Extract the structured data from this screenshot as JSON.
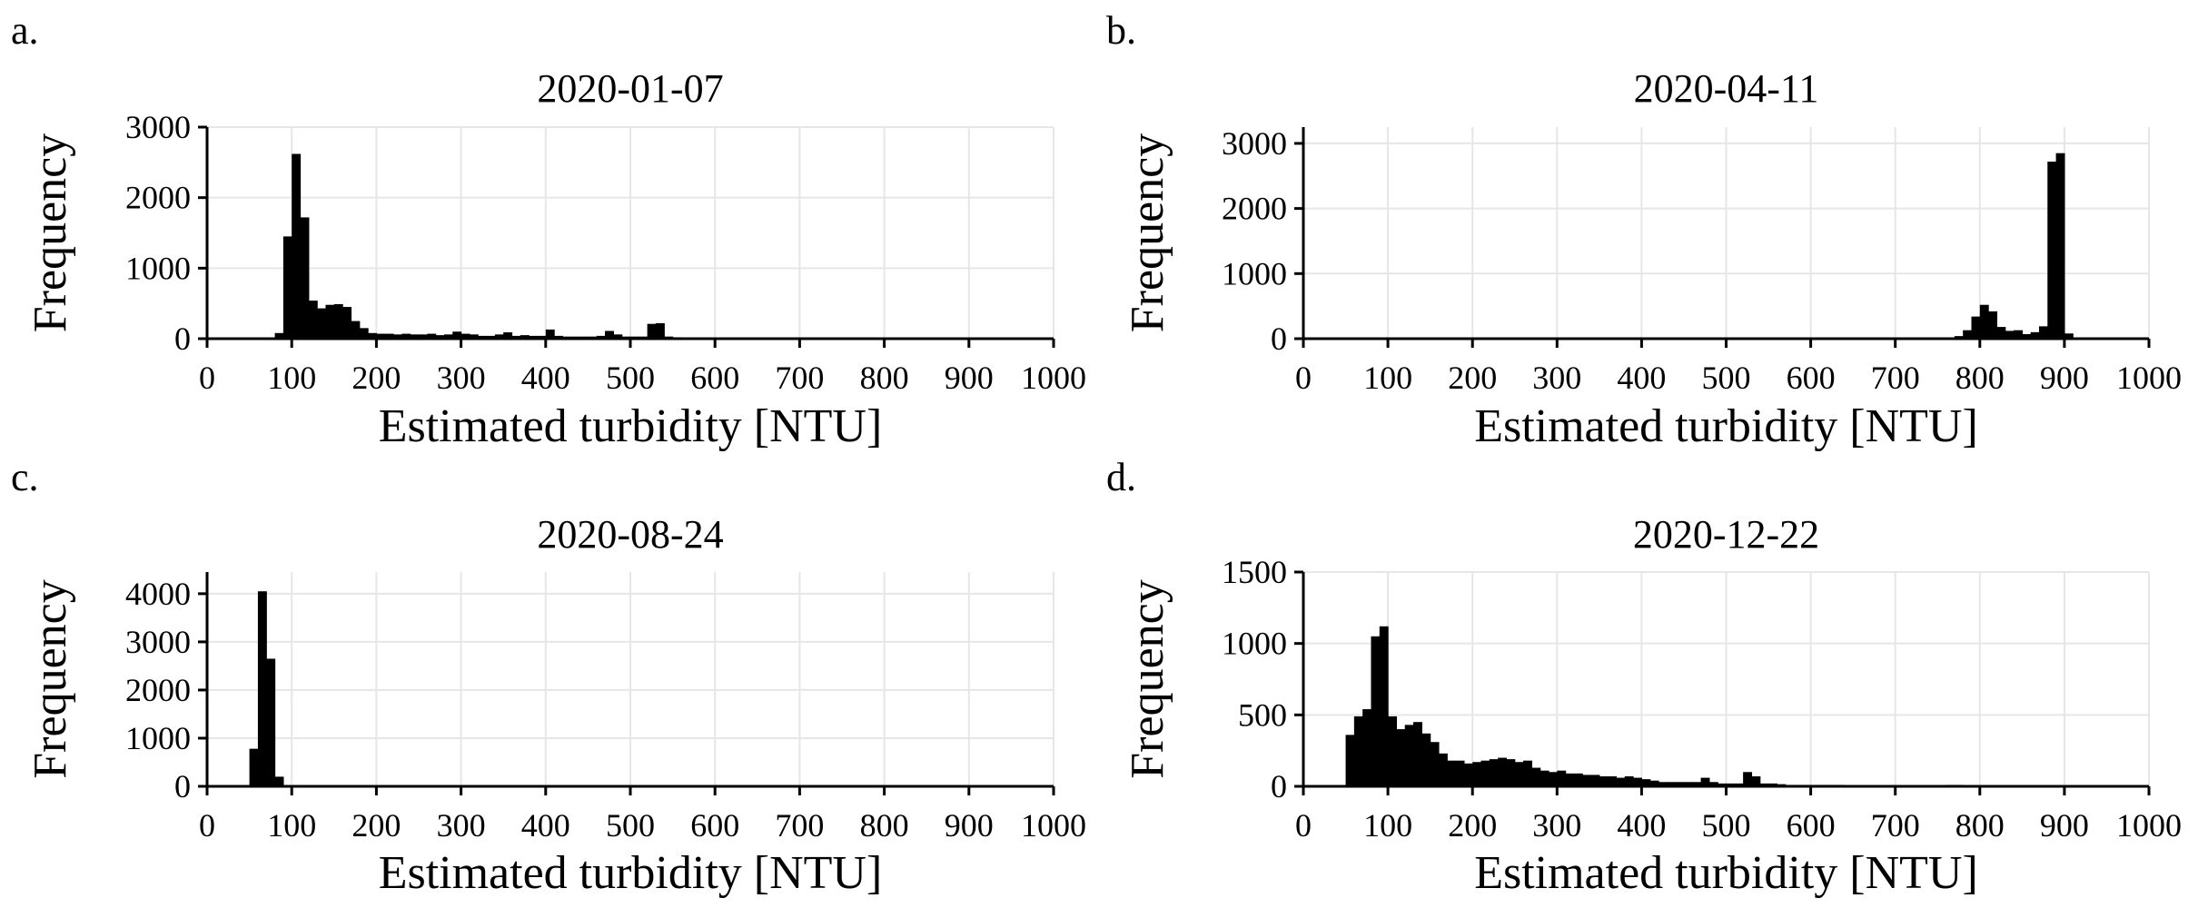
{
  "chart_data": [
    {
      "panel": "a.",
      "type": "bar",
      "title": "2020-01-07",
      "xlabel": "Estimated turbidity [NTU]",
      "ylabel": "Frequency",
      "xlim": [
        0,
        1000
      ],
      "ylim": [
        0,
        3000
      ],
      "xticks": [
        0,
        100,
        200,
        300,
        400,
        500,
        600,
        700,
        800,
        900,
        1000
      ],
      "yticks": [
        0,
        1000,
        2000,
        3000
      ],
      "grid": true,
      "bin_width": 10,
      "bins": [
        [
          80,
          90,
          80
        ],
        [
          90,
          100,
          1450
        ],
        [
          100,
          110,
          2620
        ],
        [
          110,
          120,
          1720
        ],
        [
          120,
          130,
          540
        ],
        [
          130,
          140,
          430
        ],
        [
          140,
          150,
          480
        ],
        [
          150,
          160,
          490
        ],
        [
          160,
          170,
          450
        ],
        [
          170,
          180,
          250
        ],
        [
          180,
          190,
          150
        ],
        [
          190,
          200,
          80
        ],
        [
          200,
          210,
          70
        ],
        [
          210,
          220,
          70
        ],
        [
          220,
          230,
          60
        ],
        [
          230,
          240,
          70
        ],
        [
          240,
          250,
          60
        ],
        [
          250,
          260,
          60
        ],
        [
          260,
          270,
          70
        ],
        [
          270,
          280,
          50
        ],
        [
          280,
          290,
          60
        ],
        [
          290,
          300,
          100
        ],
        [
          300,
          310,
          70
        ],
        [
          310,
          320,
          60
        ],
        [
          320,
          330,
          40
        ],
        [
          330,
          340,
          40
        ],
        [
          340,
          350,
          60
        ],
        [
          350,
          360,
          90
        ],
        [
          360,
          370,
          40
        ],
        [
          370,
          380,
          50
        ],
        [
          380,
          390,
          40
        ],
        [
          390,
          400,
          40
        ],
        [
          400,
          410,
          130
        ],
        [
          410,
          420,
          40
        ],
        [
          420,
          430,
          30
        ],
        [
          430,
          440,
          30
        ],
        [
          440,
          450,
          30
        ],
        [
          450,
          460,
          30
        ],
        [
          460,
          470,
          40
        ],
        [
          470,
          480,
          110
        ],
        [
          480,
          490,
          60
        ],
        [
          490,
          500,
          30
        ],
        [
          500,
          510,
          30
        ],
        [
          510,
          520,
          30
        ],
        [
          520,
          530,
          210
        ],
        [
          530,
          540,
          220
        ],
        [
          540,
          550,
          30
        ],
        [
          550,
          560,
          20
        ],
        [
          560,
          570,
          15
        ],
        [
          570,
          580,
          15
        ],
        [
          580,
          590,
          10
        ],
        [
          590,
          600,
          10
        ]
      ]
    },
    {
      "panel": "b.",
      "type": "bar",
      "title": "2020-04-11",
      "xlabel": "Estimated turbidity [NTU]",
      "ylabel": "Frequency",
      "xlim": [
        0,
        1000
      ],
      "ylim": [
        0,
        3250
      ],
      "xticks": [
        0,
        100,
        200,
        300,
        400,
        500,
        600,
        700,
        800,
        900,
        1000
      ],
      "yticks": [
        0,
        1000,
        2000,
        3000
      ],
      "grid": true,
      "bin_width": 10,
      "bins": [
        [
          600,
          610,
          10
        ],
        [
          610,
          620,
          10
        ],
        [
          620,
          630,
          10
        ],
        [
          630,
          640,
          10
        ],
        [
          640,
          650,
          10
        ],
        [
          650,
          660,
          10
        ],
        [
          660,
          670,
          10
        ],
        [
          670,
          680,
          10
        ],
        [
          680,
          690,
          10
        ],
        [
          690,
          700,
          10
        ],
        [
          700,
          710,
          10
        ],
        [
          710,
          720,
          10
        ],
        [
          720,
          730,
          10
        ],
        [
          730,
          740,
          10
        ],
        [
          740,
          750,
          15
        ],
        [
          750,
          760,
          15
        ],
        [
          760,
          770,
          20
        ],
        [
          770,
          780,
          40
        ],
        [
          780,
          790,
          130
        ],
        [
          790,
          800,
          340
        ],
        [
          800,
          810,
          520
        ],
        [
          810,
          820,
          420
        ],
        [
          820,
          830,
          180
        ],
        [
          830,
          840,
          120
        ],
        [
          840,
          850,
          130
        ],
        [
          850,
          860,
          70
        ],
        [
          860,
          870,
          100
        ],
        [
          870,
          880,
          190
        ],
        [
          880,
          890,
          2720
        ],
        [
          890,
          900,
          2850
        ],
        [
          900,
          910,
          80
        ],
        [
          910,
          920,
          10
        ],
        [
          920,
          930,
          5
        ],
        [
          930,
          940,
          5
        ]
      ]
    },
    {
      "panel": "c.",
      "type": "bar",
      "title": "2020-08-24",
      "xlabel": "Estimated turbidity [NTU]",
      "ylabel": "Frequency",
      "xlim": [
        0,
        1000
      ],
      "ylim": [
        0,
        4450
      ],
      "xticks": [
        0,
        100,
        200,
        300,
        400,
        500,
        600,
        700,
        800,
        900,
        1000
      ],
      "yticks": [
        0,
        1000,
        2000,
        3000,
        4000
      ],
      "grid": true,
      "bin_width": 10,
      "bins": [
        [
          50,
          60,
          780
        ],
        [
          60,
          70,
          4050
        ],
        [
          70,
          80,
          2650
        ],
        [
          80,
          90,
          200
        ],
        [
          90,
          100,
          20
        ],
        [
          100,
          110,
          10
        ],
        [
          110,
          120,
          5
        ]
      ]
    },
    {
      "panel": "d.",
      "type": "bar",
      "title": "2020-12-22",
      "xlabel": "Estimated turbidity [NTU]",
      "ylabel": "Frequency",
      "xlim": [
        0,
        1000
      ],
      "ylim": [
        0,
        1500
      ],
      "xticks": [
        0,
        100,
        200,
        300,
        400,
        500,
        600,
        700,
        800,
        900,
        1000
      ],
      "yticks": [
        0,
        500,
        1000,
        1500
      ],
      "grid": true,
      "bin_width": 10,
      "bins": [
        [
          50,
          60,
          360
        ],
        [
          60,
          70,
          490
        ],
        [
          70,
          80,
          540
        ],
        [
          80,
          90,
          1050
        ],
        [
          90,
          100,
          1120
        ],
        [
          100,
          110,
          490
        ],
        [
          110,
          120,
          400
        ],
        [
          120,
          130,
          430
        ],
        [
          130,
          140,
          450
        ],
        [
          140,
          150,
          370
        ],
        [
          150,
          160,
          310
        ],
        [
          160,
          170,
          230
        ],
        [
          170,
          180,
          180
        ],
        [
          180,
          190,
          180
        ],
        [
          190,
          200,
          160
        ],
        [
          200,
          210,
          170
        ],
        [
          210,
          220,
          180
        ],
        [
          220,
          230,
          190
        ],
        [
          230,
          240,
          200
        ],
        [
          240,
          250,
          190
        ],
        [
          250,
          260,
          170
        ],
        [
          260,
          270,
          180
        ],
        [
          270,
          280,
          130
        ],
        [
          280,
          290,
          110
        ],
        [
          290,
          300,
          100
        ],
        [
          300,
          310,
          110
        ],
        [
          310,
          320,
          90
        ],
        [
          320,
          330,
          90
        ],
        [
          330,
          340,
          80
        ],
        [
          340,
          350,
          80
        ],
        [
          350,
          360,
          70
        ],
        [
          360,
          370,
          70
        ],
        [
          370,
          380,
          60
        ],
        [
          380,
          390,
          70
        ],
        [
          390,
          400,
          60
        ],
        [
          400,
          410,
          50
        ],
        [
          410,
          420,
          40
        ],
        [
          420,
          430,
          30
        ],
        [
          430,
          440,
          30
        ],
        [
          440,
          450,
          30
        ],
        [
          450,
          460,
          30
        ],
        [
          460,
          470,
          30
        ],
        [
          470,
          480,
          60
        ],
        [
          480,
          490,
          30
        ],
        [
          490,
          500,
          20
        ],
        [
          500,
          510,
          20
        ],
        [
          510,
          520,
          20
        ],
        [
          520,
          530,
          100
        ],
        [
          530,
          540,
          70
        ],
        [
          540,
          550,
          20
        ],
        [
          550,
          560,
          20
        ],
        [
          560,
          570,
          15
        ],
        [
          570,
          580,
          10
        ],
        [
          580,
          590,
          10
        ],
        [
          590,
          600,
          10
        ],
        [
          600,
          610,
          10
        ],
        [
          610,
          620,
          10
        ],
        [
          620,
          630,
          10
        ],
        [
          630,
          640,
          10
        ],
        [
          640,
          650,
          5
        ],
        [
          760,
          770,
          10
        ],
        [
          770,
          780,
          10
        ],
        [
          780,
          790,
          8
        ],
        [
          790,
          800,
          8
        ]
      ]
    }
  ]
}
